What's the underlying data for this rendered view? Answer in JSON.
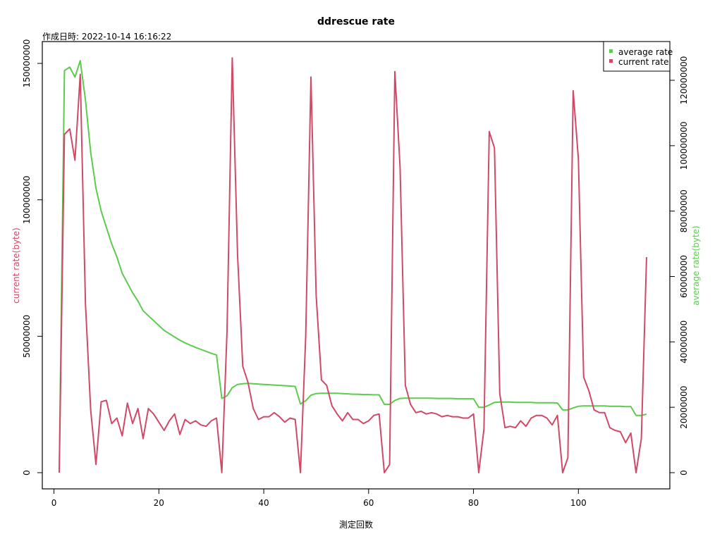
{
  "chart_data": {
    "type": "line",
    "title": "ddrescue rate",
    "subtitle": "作成日時: 2022-10-14 16:16:22",
    "xlabel": "測定回数",
    "ylabel_left": "current rate(byte)",
    "ylabel_right": "average rate(byte)",
    "xlim": [
      1,
      113
    ],
    "ylim_left": [
      0,
      155000000
    ],
    "ylim_right": [
      0,
      130000000
    ],
    "x_ticks": [
      0,
      20,
      40,
      60,
      80,
      100
    ],
    "x_tick_labels": [
      "0",
      "20",
      "40",
      "60",
      "80",
      "100"
    ],
    "y_left_ticks": [
      0,
      50000000,
      100000000,
      150000000
    ],
    "y_left_tick_labels": [
      "0",
      "50000000",
      "100000000",
      "150000000"
    ],
    "y_right_ticks": [
      0,
      20000000,
      40000000,
      60000000,
      80000000,
      100000000,
      120000000
    ],
    "y_right_tick_labels": [
      "0",
      "20000000",
      "40000000",
      "60000000",
      "80000000",
      "100000000",
      "120000000"
    ],
    "grid": false,
    "legend_position": "top-right",
    "colors": {
      "current": "#d04a68",
      "average": "#5ccb4e"
    },
    "series": [
      {
        "name": "current rate",
        "axis": "left",
        "x": [
          1,
          2,
          3,
          4,
          5,
          6,
          7,
          8,
          9,
          10,
          11,
          12,
          13,
          14,
          15,
          16,
          17,
          18,
          19,
          20,
          21,
          22,
          23,
          24,
          25,
          26,
          27,
          28,
          29,
          30,
          31,
          32,
          33,
          34,
          35,
          36,
          37,
          38,
          39,
          40,
          41,
          42,
          43,
          44,
          45,
          46,
          47,
          48,
          49,
          50,
          51,
          52,
          53,
          54,
          55,
          56,
          57,
          58,
          59,
          60,
          61,
          62,
          63,
          64,
          65,
          66,
          67,
          68,
          69,
          70,
          71,
          72,
          73,
          74,
          75,
          76,
          77,
          78,
          79,
          80,
          81,
          82,
          83,
          84,
          85,
          86,
          87,
          88,
          89,
          90,
          91,
          92,
          93,
          94,
          95,
          96,
          97,
          98,
          99,
          100,
          101,
          102,
          103,
          104,
          105,
          106,
          107,
          108,
          109,
          110,
          111,
          112,
          113
        ],
        "values": [
          0,
          124000000,
          126000000,
          114500000,
          146000000,
          62000000,
          23000000,
          3000000,
          26000000,
          26500000,
          18000000,
          20000000,
          13500000,
          25500000,
          18000000,
          23500000,
          12500000,
          23500000,
          21500000,
          18500000,
          15500000,
          19000000,
          21500000,
          14000000,
          19500000,
          18000000,
          19000000,
          17500000,
          17000000,
          19000000,
          20000000,
          0,
          52000000,
          152000000,
          80000000,
          39000000,
          33000000,
          23500000,
          19500000,
          20500000,
          20500000,
          22000000,
          20500000,
          18500000,
          20000000,
          19500000,
          0,
          50000000,
          145000000,
          65000000,
          34000000,
          32000000,
          24500000,
          21500000,
          19000000,
          22000000,
          19500000,
          19500000,
          18000000,
          19000000,
          21000000,
          21500000,
          0,
          3000000,
          147000000,
          112000000,
          32000000,
          25000000,
          22000000,
          22500000,
          21500000,
          22000000,
          21500000,
          20500000,
          21000000,
          20500000,
          20500000,
          20000000,
          20000000,
          21500000,
          0,
          16000000,
          125000000,
          119000000,
          29000000,
          16500000,
          17000000,
          16500000,
          19000000,
          17000000,
          20000000,
          21000000,
          21000000,
          20000000,
          17500000,
          21000000,
          0,
          5500000,
          140000000,
          115000000,
          35000000,
          30000000,
          23000000,
          22000000,
          22000000,
          16500000,
          15500000,
          15000000,
          11000000,
          14500000,
          0,
          12500000,
          79000000
        ]
      },
      {
        "name": "average rate",
        "axis": "right",
        "x": [
          1,
          2,
          3,
          4,
          5,
          6,
          7,
          8,
          9,
          10,
          11,
          12,
          13,
          14,
          15,
          16,
          17,
          18,
          19,
          20,
          21,
          22,
          23,
          24,
          25,
          26,
          27,
          28,
          29,
          30,
          31,
          32,
          33,
          34,
          35,
          36,
          37,
          38,
          39,
          40,
          41,
          42,
          43,
          44,
          45,
          46,
          47,
          48,
          49,
          50,
          51,
          52,
          53,
          54,
          55,
          56,
          57,
          58,
          59,
          60,
          61,
          62,
          63,
          64,
          65,
          66,
          67,
          68,
          69,
          70,
          71,
          72,
          73,
          74,
          75,
          76,
          77,
          78,
          79,
          80,
          81,
          82,
          83,
          84,
          85,
          86,
          87,
          88,
          89,
          90,
          91,
          92,
          93,
          94,
          95,
          96,
          97,
          98,
          99,
          100,
          101,
          102,
          103,
          104,
          105,
          106,
          107,
          108,
          109,
          110,
          111,
          112,
          113
        ],
        "values": [
          0,
          123000000,
          124000000,
          121000000,
          126000000,
          114000000,
          98000000,
          87000000,
          80000000,
          75000000,
          70000000,
          66000000,
          61000000,
          58000000,
          55000000,
          52500000,
          49500000,
          48000000,
          46500000,
          45000000,
          43500000,
          42500000,
          41500000,
          40500000,
          39700000,
          39000000,
          38300000,
          37700000,
          37100000,
          36500000,
          36000000,
          22700000,
          23500000,
          26000000,
          27000000,
          27200000,
          27300000,
          27200000,
          27100000,
          27000000,
          26900000,
          26800000,
          26700000,
          26600000,
          26500000,
          26400000,
          21000000,
          22000000,
          23700000,
          24200000,
          24300000,
          24300000,
          24300000,
          24300000,
          24200000,
          24100000,
          24000000,
          24000000,
          23900000,
          23900000,
          23800000,
          23800000,
          20900000,
          20900000,
          22100000,
          22700000,
          22800000,
          22800000,
          22800000,
          22800000,
          22800000,
          22800000,
          22700000,
          22700000,
          22700000,
          22700000,
          22600000,
          22600000,
          22600000,
          22600000,
          20000000,
          20000000,
          20700000,
          21500000,
          21600000,
          21600000,
          21600000,
          21500000,
          21500000,
          21500000,
          21500000,
          21400000,
          21400000,
          21400000,
          21400000,
          21300000,
          19200000,
          19200000,
          19800000,
          20300000,
          20400000,
          20400000,
          20400000,
          20400000,
          20400000,
          20300000,
          20300000,
          20300000,
          20200000,
          20200000,
          17500000,
          17500000,
          17900000
        ]
      }
    ]
  },
  "legend": {
    "items": [
      {
        "label": "average rate",
        "color": "#5ccb4e"
      },
      {
        "label": "current rate",
        "color": "#d04a68"
      }
    ]
  }
}
